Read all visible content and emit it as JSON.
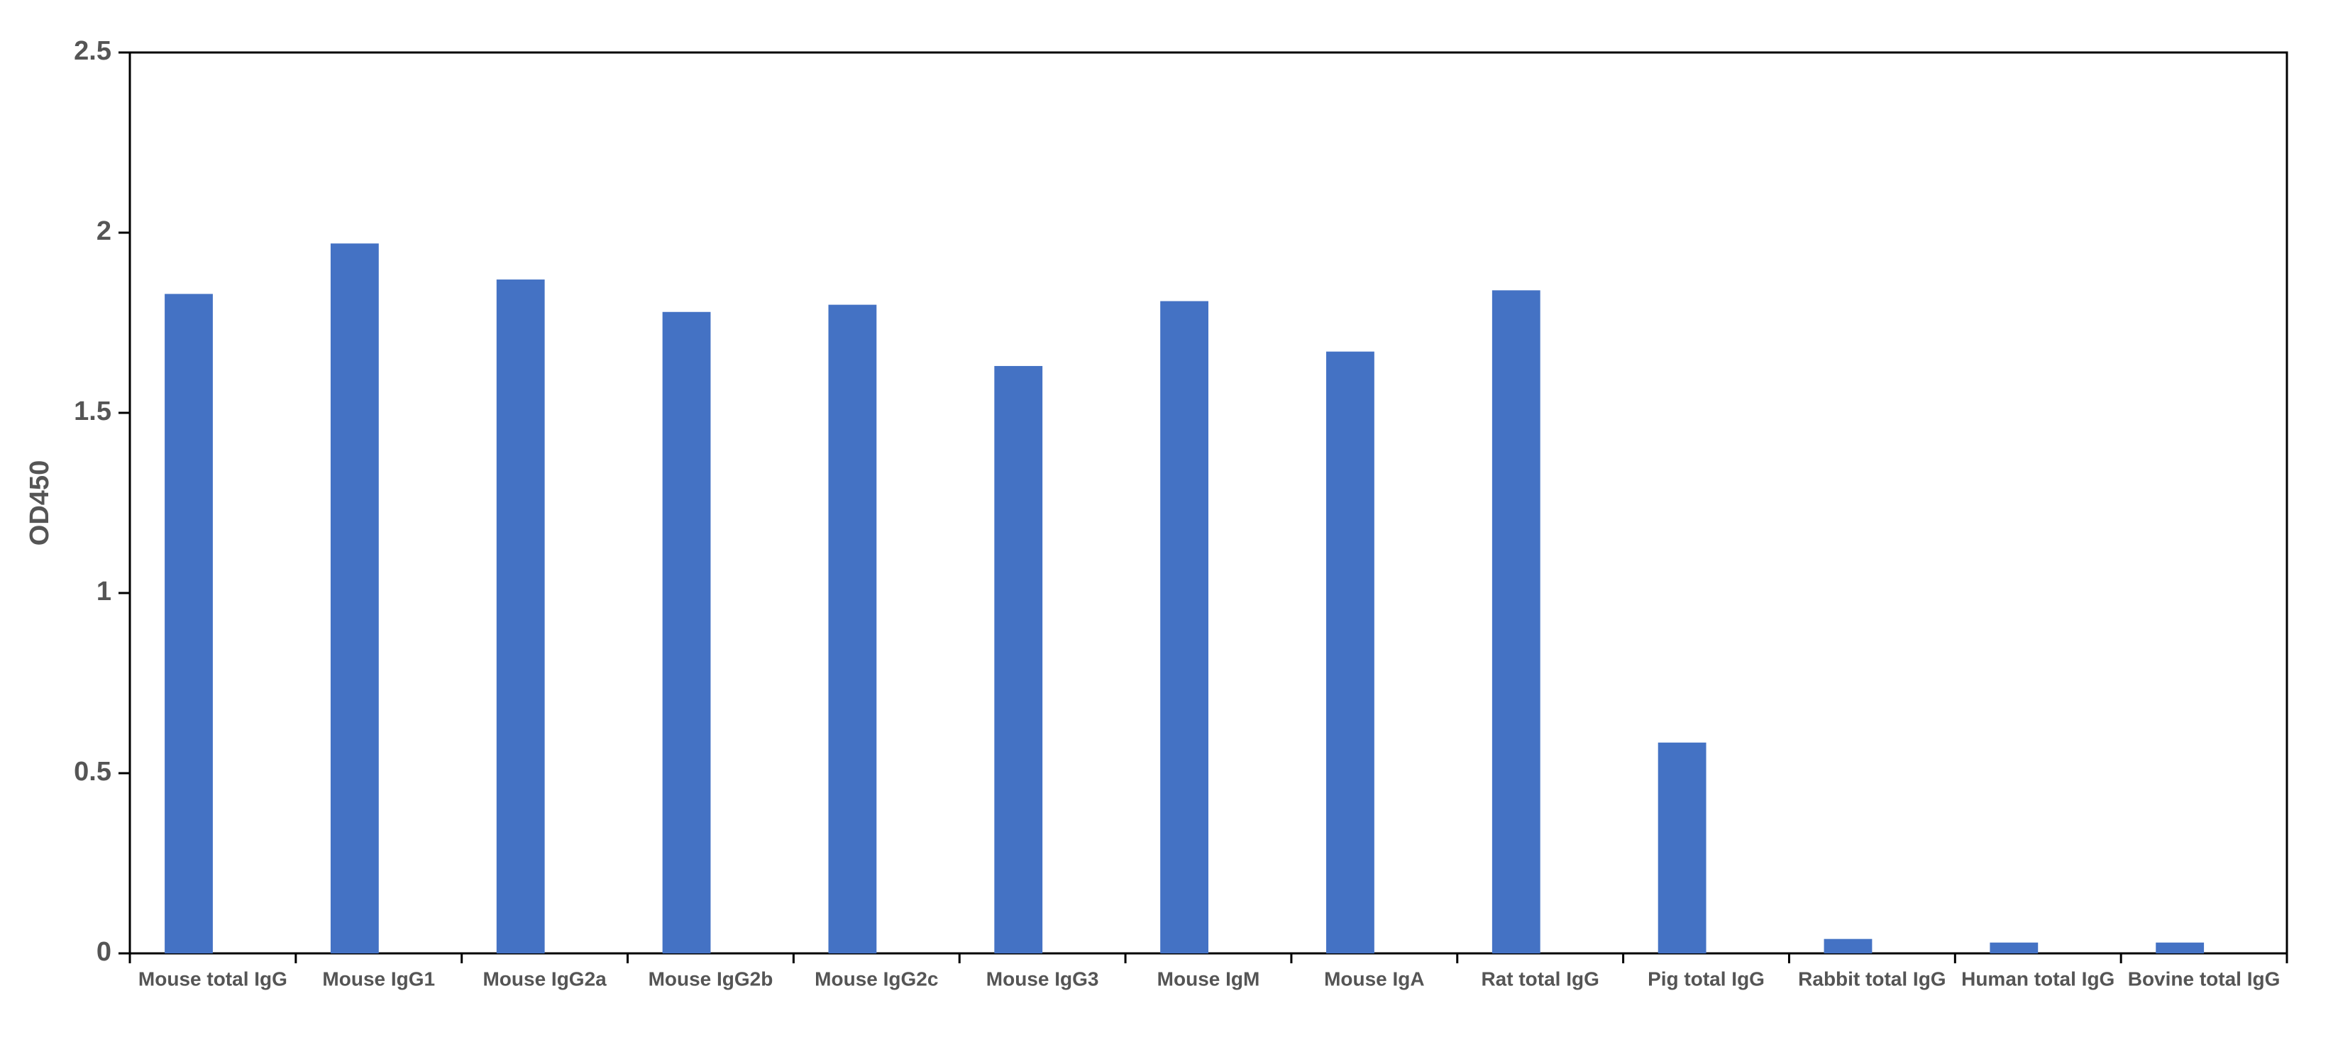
{
  "chart_data": {
    "type": "bar",
    "ylabel": "OD450",
    "categories": [
      "Mouse total IgG",
      "Mouse IgG1",
      "Mouse IgG2a",
      "Mouse IgG2b",
      "Mouse IgG2c",
      "Mouse IgG3",
      "Mouse IgM",
      "Mouse IgA",
      "Rat total IgG",
      "Pig total IgG",
      "Rabbit total IgG",
      "Human total IgG",
      "Bovine total IgG"
    ],
    "values": [
      1.83,
      1.97,
      1.87,
      1.78,
      1.8,
      1.63,
      1.81,
      1.67,
      1.84,
      0.585,
      0.04,
      0.03,
      0.03
    ],
    "color": "#4472c4",
    "ylim": [
      0,
      2.5
    ],
    "yticks": [
      0,
      0.5,
      1,
      1.5,
      2,
      2.5
    ],
    "grid": false
  }
}
